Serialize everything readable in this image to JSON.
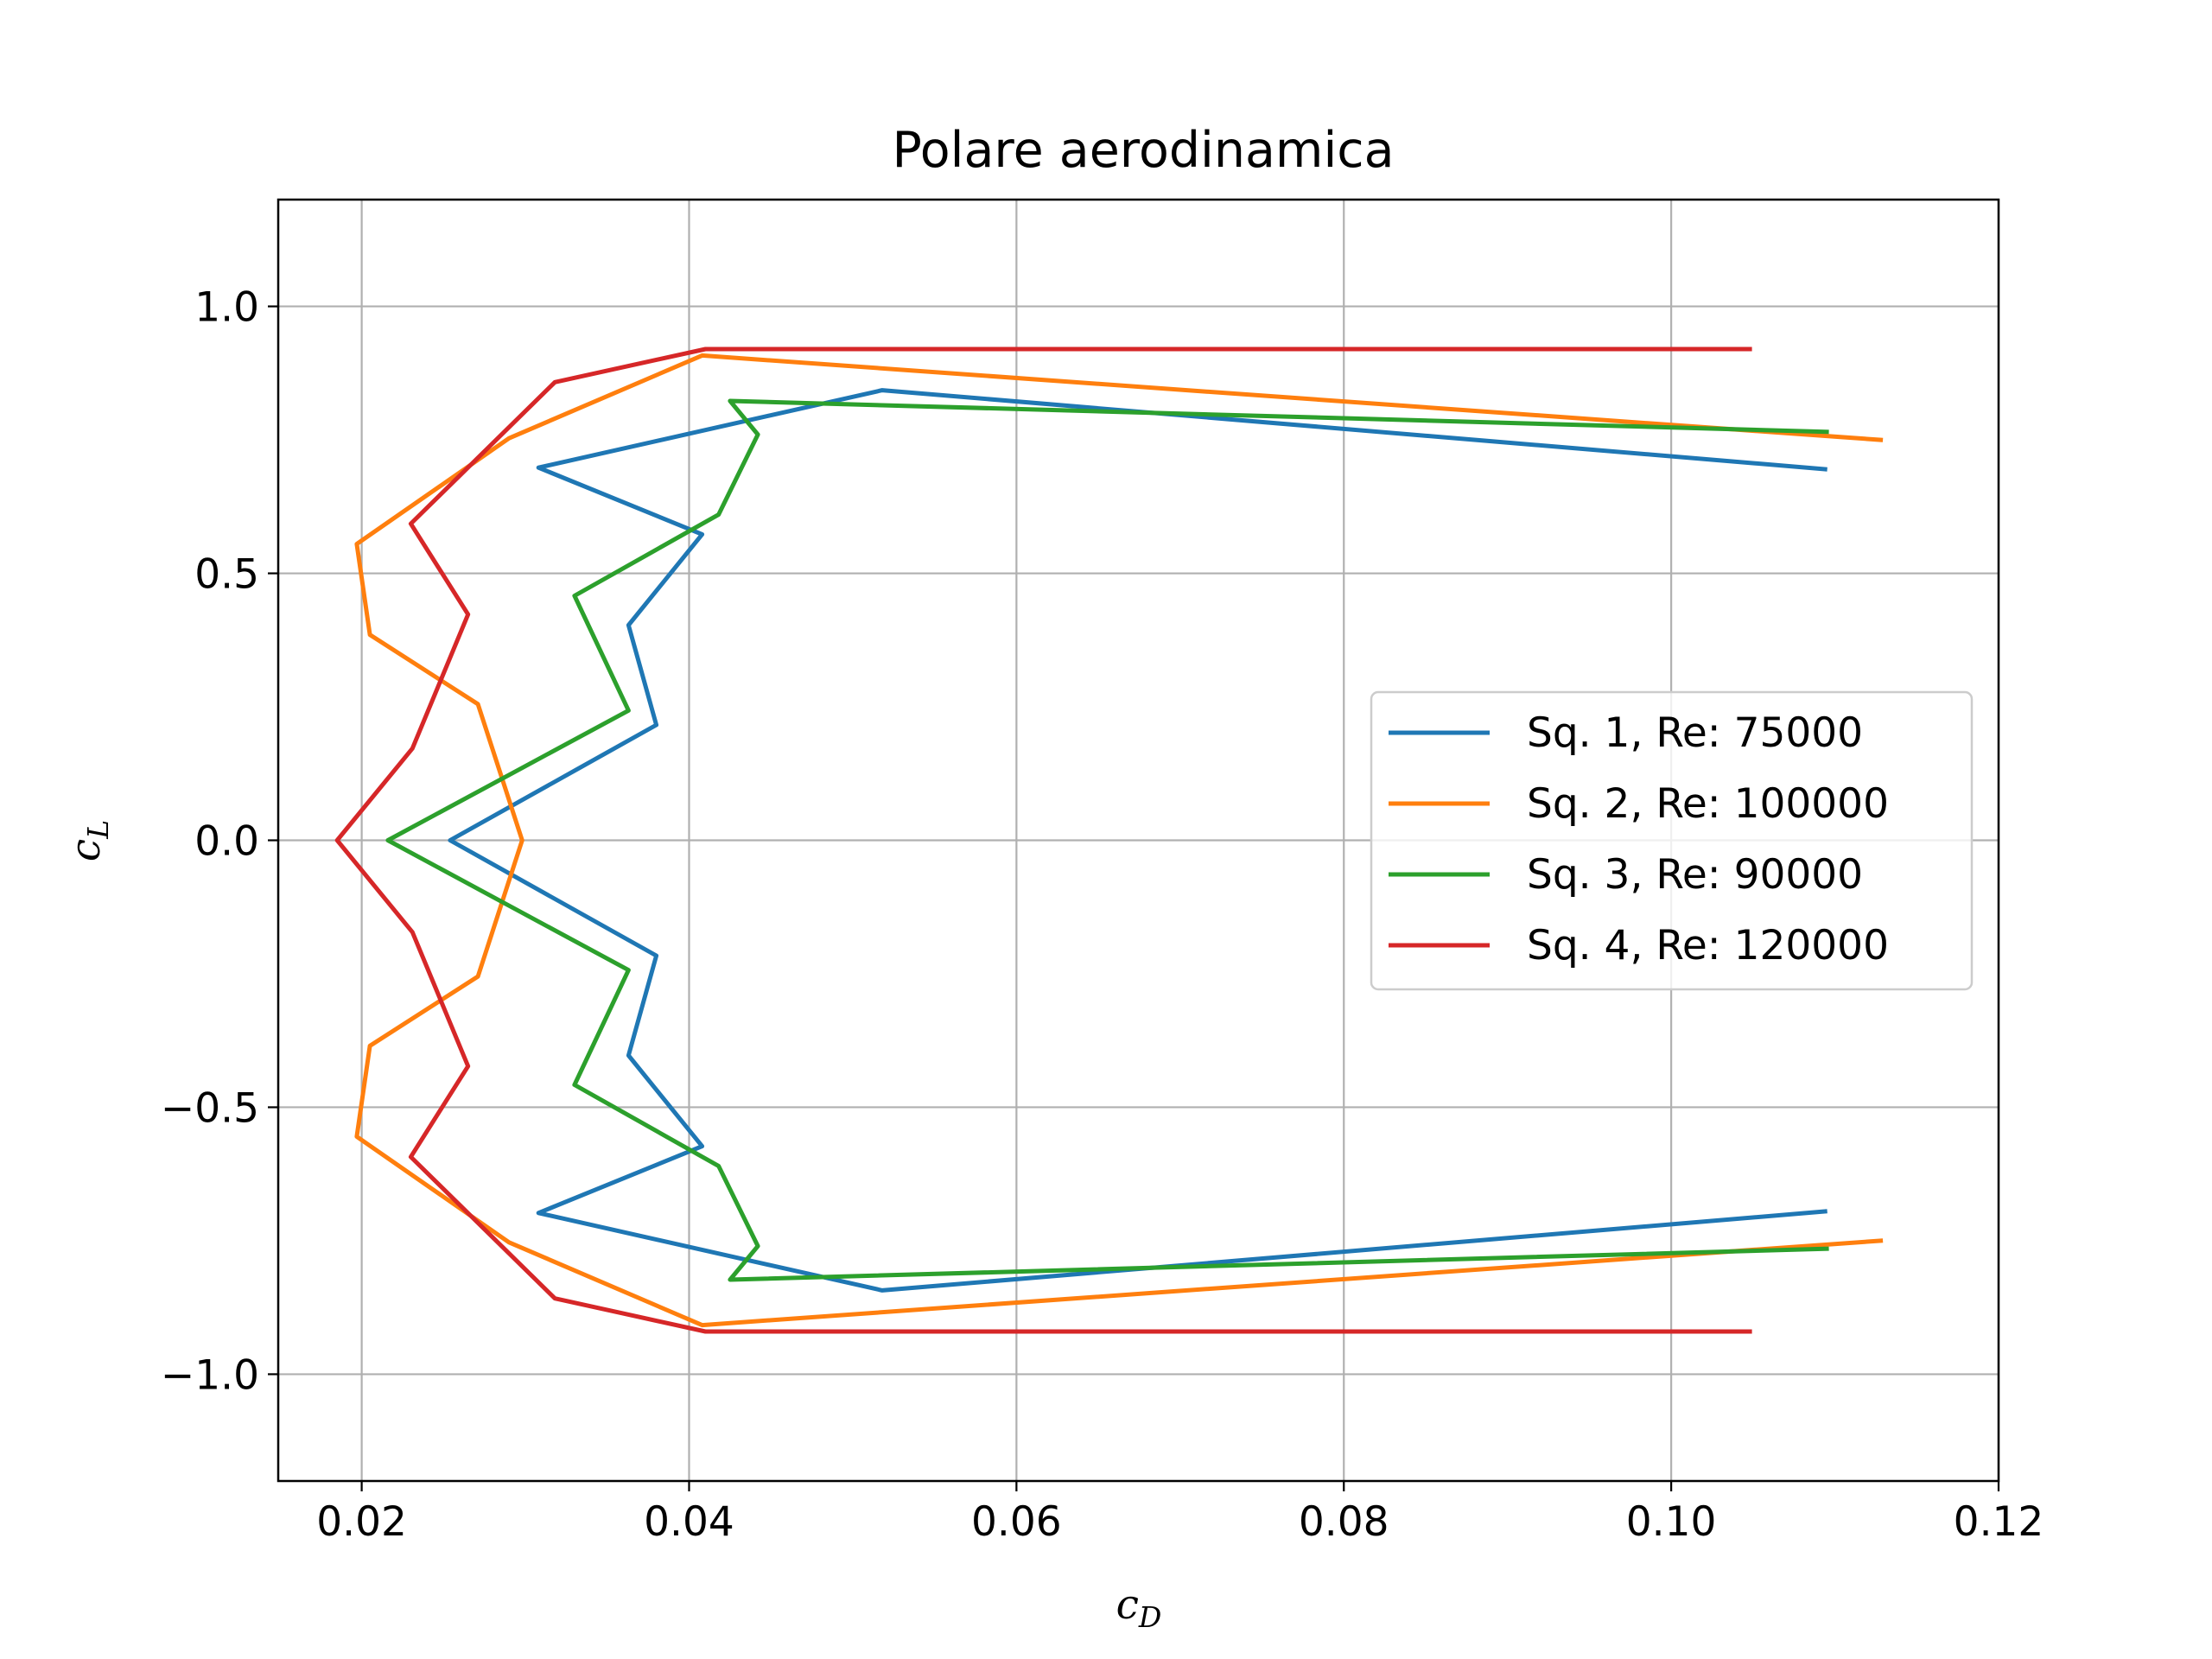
{
  "chart_data": {
    "type": "line",
    "title": "Polare aerodinamica",
    "xlabel": "c_D",
    "ylabel": "c_L",
    "xlabel_main": "c",
    "xlabel_sub": "D",
    "ylabel_main": "c",
    "ylabel_sub": "L",
    "xlim": [
      0.0149,
      0.12
    ],
    "ylim": [
      -1.2,
      1.2
    ],
    "xticks": [
      0.02,
      0.04,
      0.06,
      0.08,
      0.1,
      0.12
    ],
    "xtick_labels": [
      "0.02",
      "0.04",
      "0.06",
      "0.08",
      "0.10",
      "0.12"
    ],
    "yticks": [
      -1.0,
      -0.5,
      0.0,
      0.5,
      1.0
    ],
    "ytick_labels": [
      "−1.0",
      "−0.5",
      "0.0",
      "0.5",
      "1.0"
    ],
    "grid": true,
    "legend_position": "center-right",
    "series": [
      {
        "name": "Sq. 1, Re: 75000",
        "color": "#1f77b4",
        "x": [
          0.1094,
          0.0518,
          0.0308,
          0.0408,
          0.0363,
          0.038,
          0.0254,
          0.038,
          0.0363,
          0.0408,
          0.0308,
          0.0518,
          0.1094
        ],
        "y": [
          0.695,
          0.843,
          0.698,
          0.573,
          0.403,
          0.216,
          0.0,
          -0.216,
          -0.403,
          -0.573,
          -0.698,
          -0.843,
          -0.695
        ]
      },
      {
        "name": "Sq. 2, Re: 100000",
        "color": "#ff7f0e",
        "x": [
          0.1128,
          0.0408,
          0.029,
          0.0197,
          0.0205,
          0.0271,
          0.0298,
          0.0271,
          0.0205,
          0.0197,
          0.029,
          0.0408,
          0.1128
        ],
        "y": [
          0.75,
          0.908,
          0.753,
          0.555,
          0.385,
          0.255,
          0.0,
          -0.255,
          -0.385,
          -0.555,
          -0.753,
          -0.908,
          -0.75
        ]
      },
      {
        "name": "Sq. 3, Re: 90000",
        "color": "#2ca02c",
        "x": [
          0.1095,
          0.0425,
          0.0442,
          0.0418,
          0.033,
          0.0363,
          0.0216,
          0.0363,
          0.033,
          0.0418,
          0.0442,
          0.0425,
          0.1095
        ],
        "y": [
          0.765,
          0.823,
          0.76,
          0.61,
          0.458,
          0.243,
          0.0,
          -0.243,
          -0.458,
          -0.61,
          -0.76,
          -0.823,
          -0.765
        ]
      },
      {
        "name": "Sq. 4, Re: 120000",
        "color": "#d62728",
        "x": [
          0.1048,
          0.041,
          0.0318,
          0.023,
          0.0265,
          0.0231,
          0.0185,
          0.0231,
          0.0265,
          0.023,
          0.0318,
          0.041,
          0.1048
        ],
        "y": [
          0.92,
          0.92,
          0.858,
          0.593,
          0.423,
          0.172,
          0.0,
          -0.172,
          -0.423,
          -0.593,
          -0.858,
          -0.92,
          -0.92
        ]
      }
    ]
  }
}
